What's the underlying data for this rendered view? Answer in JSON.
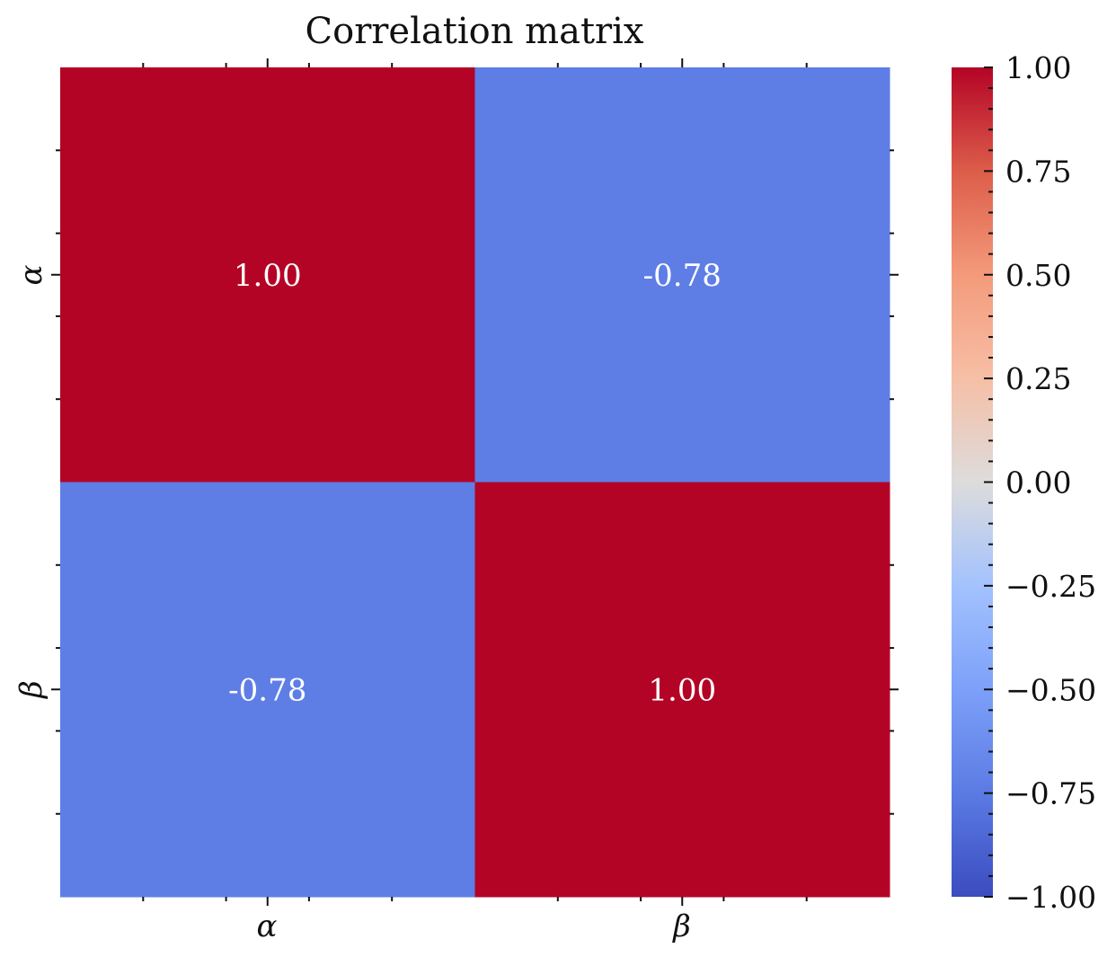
{
  "chart_data": {
    "type": "heatmap",
    "title": "Correlation matrix",
    "x_categories": [
      "α",
      "β"
    ],
    "y_categories": [
      "α",
      "β"
    ],
    "values": [
      [
        1.0,
        -0.78
      ],
      [
        -0.78,
        1.0
      ]
    ],
    "cell_labels": [
      [
        "1.00",
        "-0.78"
      ],
      [
        "-0.78",
        "1.00"
      ]
    ],
    "colormap": "coolwarm",
    "colorbar": {
      "range": [
        -1.0,
        1.0
      ],
      "ticks": [
        {
          "value": 1.0,
          "label": "1.00"
        },
        {
          "value": 0.75,
          "label": "0.75"
        },
        {
          "value": 0.5,
          "label": "0.50"
        },
        {
          "value": 0.25,
          "label": "0.25"
        },
        {
          "value": 0.0,
          "label": "0.00"
        },
        {
          "value": -0.25,
          "label": "−0.25"
        },
        {
          "value": -0.5,
          "label": "−0.50"
        },
        {
          "value": -0.75,
          "label": "−0.75"
        },
        {
          "value": -1.0,
          "label": "−1.00"
        }
      ]
    },
    "xlabel": "",
    "ylabel": ""
  },
  "colors": {
    "high": "#b40426",
    "negative_078": "#5e7ee6"
  }
}
